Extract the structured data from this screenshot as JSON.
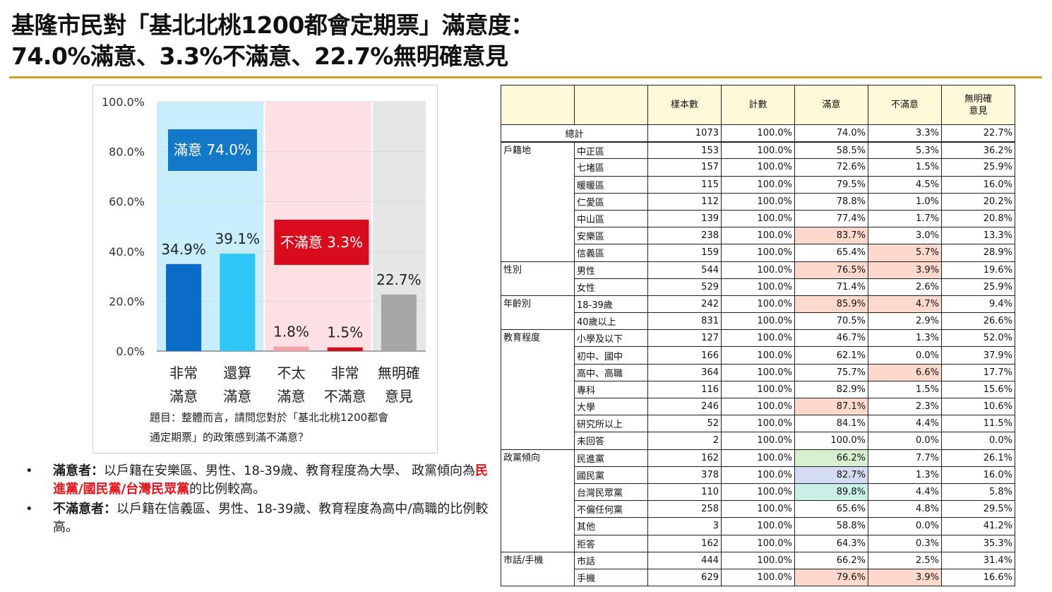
{
  "title": {
    "line1": "基隆市民對「基北北桃1200都會定期票」滿意度：",
    "line2": "74.0%滿意、3.3%不滿意、22.7%無明確意見"
  },
  "colors": {
    "title_rule": "#c9a227",
    "satisfied_zone": "#c8eefc",
    "dissatisfied_zone": "#fde0e4",
    "no_opinion_zone": "#e6e6e6",
    "very_satisfied": "#0a6cc6",
    "somewhat_satisfied": "#2ec7f5",
    "not_very_satisfied": "#f5a0a4",
    "very_dissatisfied": "#cc1020",
    "no_opinion": "#a6a6a6",
    "satisfied_box": "#1478c8",
    "dissatisfied_box": "#d80c1c"
  },
  "chart_data": {
    "type": "bar",
    "categories": [
      [
        "非常",
        "滿意"
      ],
      [
        "還算",
        "滿意"
      ],
      [
        "不太",
        "滿意"
      ],
      [
        "非常",
        "不滿意"
      ],
      [
        "無明確",
        "意見"
      ]
    ],
    "values": [
      34.9,
      39.1,
      1.8,
      1.5,
      22.7
    ],
    "value_labels": [
      "34.9%",
      "39.1%",
      "1.8%",
      "1.5%",
      "22.7%"
    ],
    "ylim": [
      0,
      100
    ],
    "yticks": [
      "0.0%",
      "20.0%",
      "40.0%",
      "60.0%",
      "80.0%",
      "100.0%"
    ],
    "annotations": {
      "satisfied": "滿意 74.0%",
      "dissatisfied": "不滿意 3.3%"
    },
    "grid": true
  },
  "question": {
    "line1": "題目：整體而言，請問您對於「基北北桃1200都會",
    "line2": "通定期票」的政策感到滿不滿意？"
  },
  "bullets": {
    "dot": "•",
    "b1_head": "滿意者：",
    "b1_text": "以戶籍在安樂區、男性、18-39歲、教育程度為大學、 政黨傾向為",
    "b1_red": "民進黨/國民黨/台灣民眾黨",
    "b1_tail": "的比例較高。",
    "b2_head": "不滿意者：",
    "b2_text": "以戶籍在信義區、男性、18-39歲、教育程度為高中/高職的比例較高。"
  },
  "table": {
    "headers": [
      "",
      "",
      "樣本數",
      "計數",
      "滿意",
      "不滿意",
      "無明確\n意見"
    ],
    "total": {
      "label": "總計",
      "cells": [
        "1073",
        "100.0%",
        "74.0%",
        "3.3%",
        "22.7%"
      ]
    },
    "groups": [
      {
        "name": "戶籍地",
        "rows": [
          {
            "label": "中正區",
            "cells": [
              "153",
              "100.0%",
              "58.5%",
              "5.3%",
              "36.2%"
            ],
            "hl": [
              "",
              "",
              "",
              "",
              ""
            ]
          },
          {
            "label": "七堵區",
            "cells": [
              "157",
              "100.0%",
              "72.6%",
              "1.5%",
              "25.9%"
            ],
            "hl": [
              "",
              "",
              "",
              "",
              ""
            ]
          },
          {
            "label": "暖暖區",
            "cells": [
              "115",
              "100.0%",
              "79.5%",
              "4.5%",
              "16.0%"
            ],
            "hl": [
              "",
              "",
              "",
              "",
              ""
            ]
          },
          {
            "label": "仁愛區",
            "cells": [
              "112",
              "100.0%",
              "78.8%",
              "1.0%",
              "20.2%"
            ],
            "hl": [
              "",
              "",
              "",
              "",
              ""
            ]
          },
          {
            "label": "中山區",
            "cells": [
              "139",
              "100.0%",
              "77.4%",
              "1.7%",
              "20.8%"
            ],
            "hl": [
              "",
              "",
              "",
              "",
              ""
            ]
          },
          {
            "label": "安樂區",
            "cells": [
              "238",
              "100.0%",
              "83.7%",
              "3.0%",
              "13.3%"
            ],
            "hl": [
              "",
              "",
              "pink",
              "",
              ""
            ]
          },
          {
            "label": "信義區",
            "cells": [
              "159",
              "100.0%",
              "65.4%",
              "5.7%",
              "28.9%"
            ],
            "hl": [
              "",
              "",
              "",
              "pink",
              ""
            ]
          }
        ]
      },
      {
        "name": "性別",
        "rows": [
          {
            "label": "男性",
            "cells": [
              "544",
              "100.0%",
              "76.5%",
              "3.9%",
              "19.6%"
            ],
            "hl": [
              "",
              "",
              "pink",
              "pink",
              ""
            ]
          },
          {
            "label": "女性",
            "cells": [
              "529",
              "100.0%",
              "71.4%",
              "2.6%",
              "25.9%"
            ],
            "hl": [
              "",
              "",
              "",
              "",
              ""
            ]
          }
        ]
      },
      {
        "name": "年齡別",
        "rows": [
          {
            "label": "18-39歲",
            "cells": [
              "242",
              "100.0%",
              "85.9%",
              "4.7%",
              "9.4%"
            ],
            "hl": [
              "",
              "",
              "pink",
              "pink",
              ""
            ]
          },
          {
            "label": "40歲以上",
            "cells": [
              "831",
              "100.0%",
              "70.5%",
              "2.9%",
              "26.6%"
            ],
            "hl": [
              "",
              "",
              "",
              "",
              ""
            ]
          }
        ]
      },
      {
        "name": "教育程度",
        "rows": [
          {
            "label": "小學及以下",
            "cells": [
              "127",
              "100.0%",
              "46.7%",
              "1.3%",
              "52.0%"
            ],
            "hl": [
              "",
              "",
              "",
              "",
              ""
            ]
          },
          {
            "label": "初中、國中",
            "cells": [
              "166",
              "100.0%",
              "62.1%",
              "0.0%",
              "37.9%"
            ],
            "hl": [
              "",
              "",
              "",
              "",
              ""
            ]
          },
          {
            "label": "高中、高職",
            "cells": [
              "364",
              "100.0%",
              "75.7%",
              "6.6%",
              "17.7%"
            ],
            "hl": [
              "",
              "",
              "",
              "pink",
              ""
            ]
          },
          {
            "label": "專科",
            "cells": [
              "116",
              "100.0%",
              "82.9%",
              "1.5%",
              "15.6%"
            ],
            "hl": [
              "",
              "",
              "",
              "",
              ""
            ]
          },
          {
            "label": "大學",
            "cells": [
              "246",
              "100.0%",
              "87.1%",
              "2.3%",
              "10.6%"
            ],
            "hl": [
              "",
              "",
              "pink",
              "",
              ""
            ]
          },
          {
            "label": "研究所以上",
            "cells": [
              "52",
              "100.0%",
              "84.1%",
              "4.4%",
              "11.5%"
            ],
            "hl": [
              "",
              "",
              "",
              "",
              ""
            ]
          },
          {
            "label": "未回答",
            "cells": [
              "2",
              "100.0%",
              "100.0%",
              "0.0%",
              "0.0%"
            ],
            "hl": [
              "",
              "",
              "",
              "",
              ""
            ]
          }
        ]
      },
      {
        "name": "政黨傾向",
        "rows": [
          {
            "label": "民進黨",
            "cells": [
              "162",
              "100.0%",
              "66.2%",
              "7.7%",
              "26.1%"
            ],
            "hl": [
              "",
              "",
              "green",
              "",
              ""
            ]
          },
          {
            "label": "國民黨",
            "cells": [
              "378",
              "100.0%",
              "82.7%",
              "1.3%",
              "16.0%"
            ],
            "hl": [
              "",
              "",
              "blue",
              "",
              ""
            ]
          },
          {
            "label": "台灣民眾黨",
            "cells": [
              "110",
              "100.0%",
              "89.8%",
              "4.4%",
              "5.8%"
            ],
            "hl": [
              "",
              "",
              "teal",
              "",
              ""
            ]
          },
          {
            "label": "不偏任何黨",
            "cells": [
              "258",
              "100.0%",
              "65.6%",
              "4.8%",
              "29.5%"
            ],
            "hl": [
              "",
              "",
              "",
              "",
              ""
            ]
          },
          {
            "label": "其他",
            "cells": [
              "3",
              "100.0%",
              "58.8%",
              "0.0%",
              "41.2%"
            ],
            "hl": [
              "",
              "",
              "",
              "",
              ""
            ]
          },
          {
            "label": "拒答",
            "cells": [
              "162",
              "100.0%",
              "64.3%",
              "0.3%",
              "35.3%"
            ],
            "hl": [
              "",
              "",
              "",
              "",
              ""
            ]
          }
        ]
      },
      {
        "name": "市話/手機",
        "rows": [
          {
            "label": "市話",
            "cells": [
              "444",
              "100.0%",
              "66.2%",
              "2.5%",
              "31.4%"
            ],
            "hl": [
              "",
              "",
              "",
              "",
              ""
            ]
          },
          {
            "label": "手機",
            "cells": [
              "629",
              "100.0%",
              "79.6%",
              "3.9%",
              "16.6%"
            ],
            "hl": [
              "",
              "",
              "pink",
              "pink",
              ""
            ]
          }
        ]
      }
    ]
  }
}
